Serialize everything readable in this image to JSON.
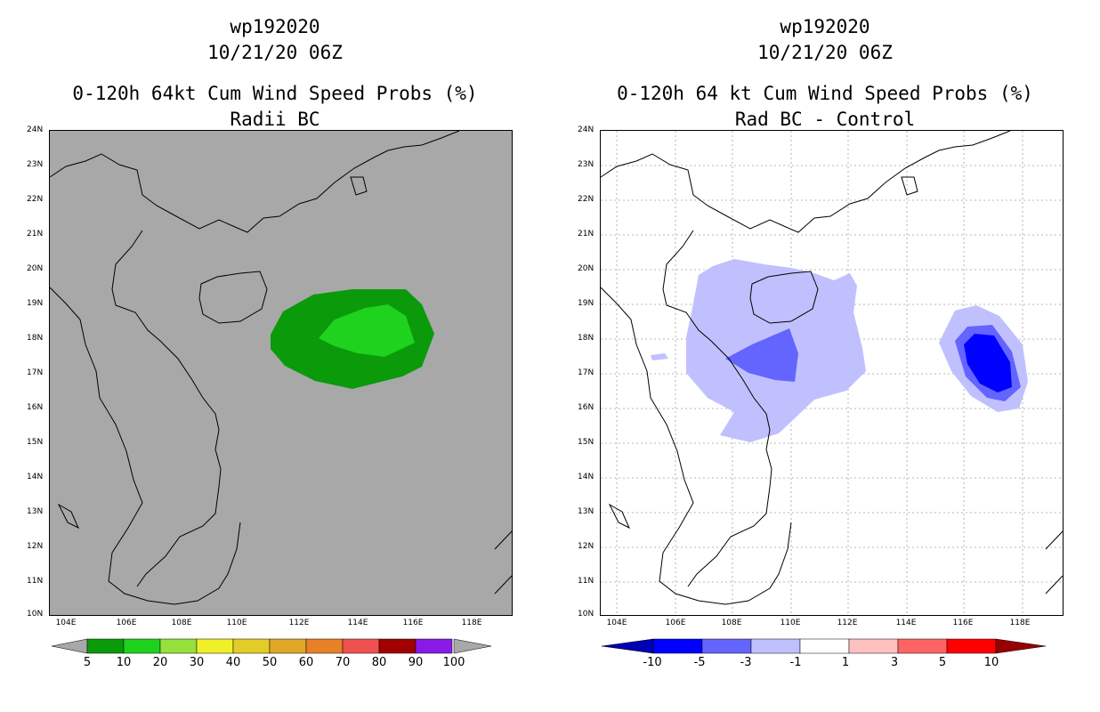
{
  "left_panel": {
    "storm_id": "wp192020",
    "datetime": "10/21/20 06Z",
    "title": "0-120h 64kt Cum Wind Speed Probs (%)",
    "subtitle": "Radii BC",
    "background_color": "#a8a8a8",
    "colorbar": {
      "labels": [
        "5",
        "10",
        "20",
        "30",
        "40",
        "50",
        "60",
        "70",
        "80",
        "90",
        "100"
      ],
      "colors": [
        "#0a9a0a",
        "#1ed21e",
        "#96e03c",
        "#f0f028",
        "#e2cc28",
        "#e0a828",
        "#e88028",
        "#f05050",
        "#a00000",
        "#8a1ae6"
      ]
    }
  },
  "right_panel": {
    "storm_id": "wp192020",
    "datetime": "10/21/20 06Z",
    "title": "0-120h 64 kt Cum Wind Speed Probs (%)",
    "subtitle": "Rad BC - Control",
    "background_color": "#ffffff",
    "colorbar": {
      "labels": [
        "-10",
        "-5",
        "-3",
        "-1",
        "1",
        "3",
        "5",
        "10"
      ],
      "colors": [
        "#0000b4",
        "#0000ff",
        "#6464ff",
        "#c0c0ff",
        "#ffffff",
        "#ffc0c0",
        "#ff6464",
        "#ff0000",
        "#960000"
      ]
    }
  },
  "axes": {
    "lat_labels": [
      "24N",
      "23N",
      "22N",
      "21N",
      "20N",
      "19N",
      "18N",
      "17N",
      "16N",
      "15N",
      "14N",
      "13N",
      "12N",
      "11N",
      "10N"
    ],
    "lon_labels": [
      "104E",
      "106E",
      "108E",
      "110E",
      "112E",
      "114E",
      "116E",
      "118E"
    ]
  }
}
